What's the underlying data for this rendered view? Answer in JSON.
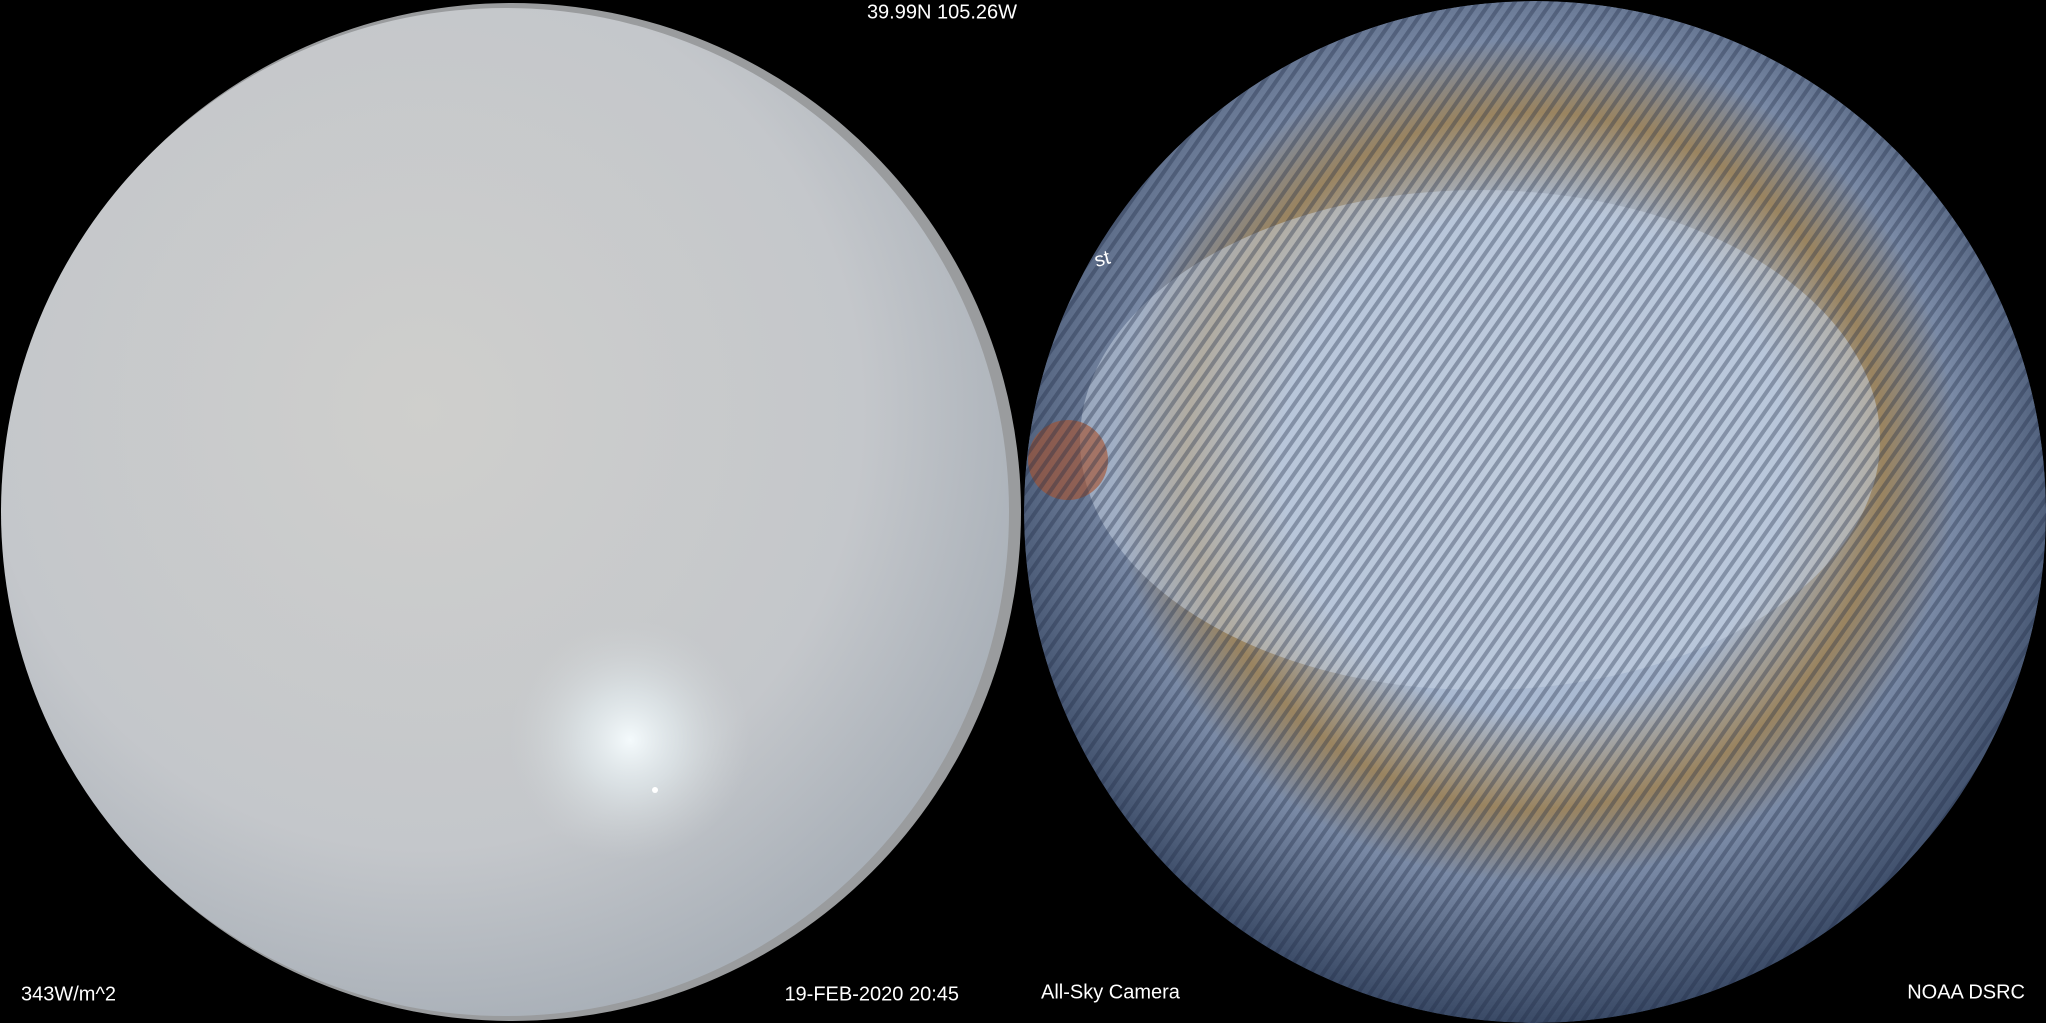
{
  "header": {
    "location": "39.99N 105.26W"
  },
  "footer": {
    "irradiance": "343W/m^2",
    "timestamp": "19-FEB-2020 20:45",
    "camera": "All-Sky Camera",
    "source": "NOAA DSRC"
  },
  "image_text": "st"
}
